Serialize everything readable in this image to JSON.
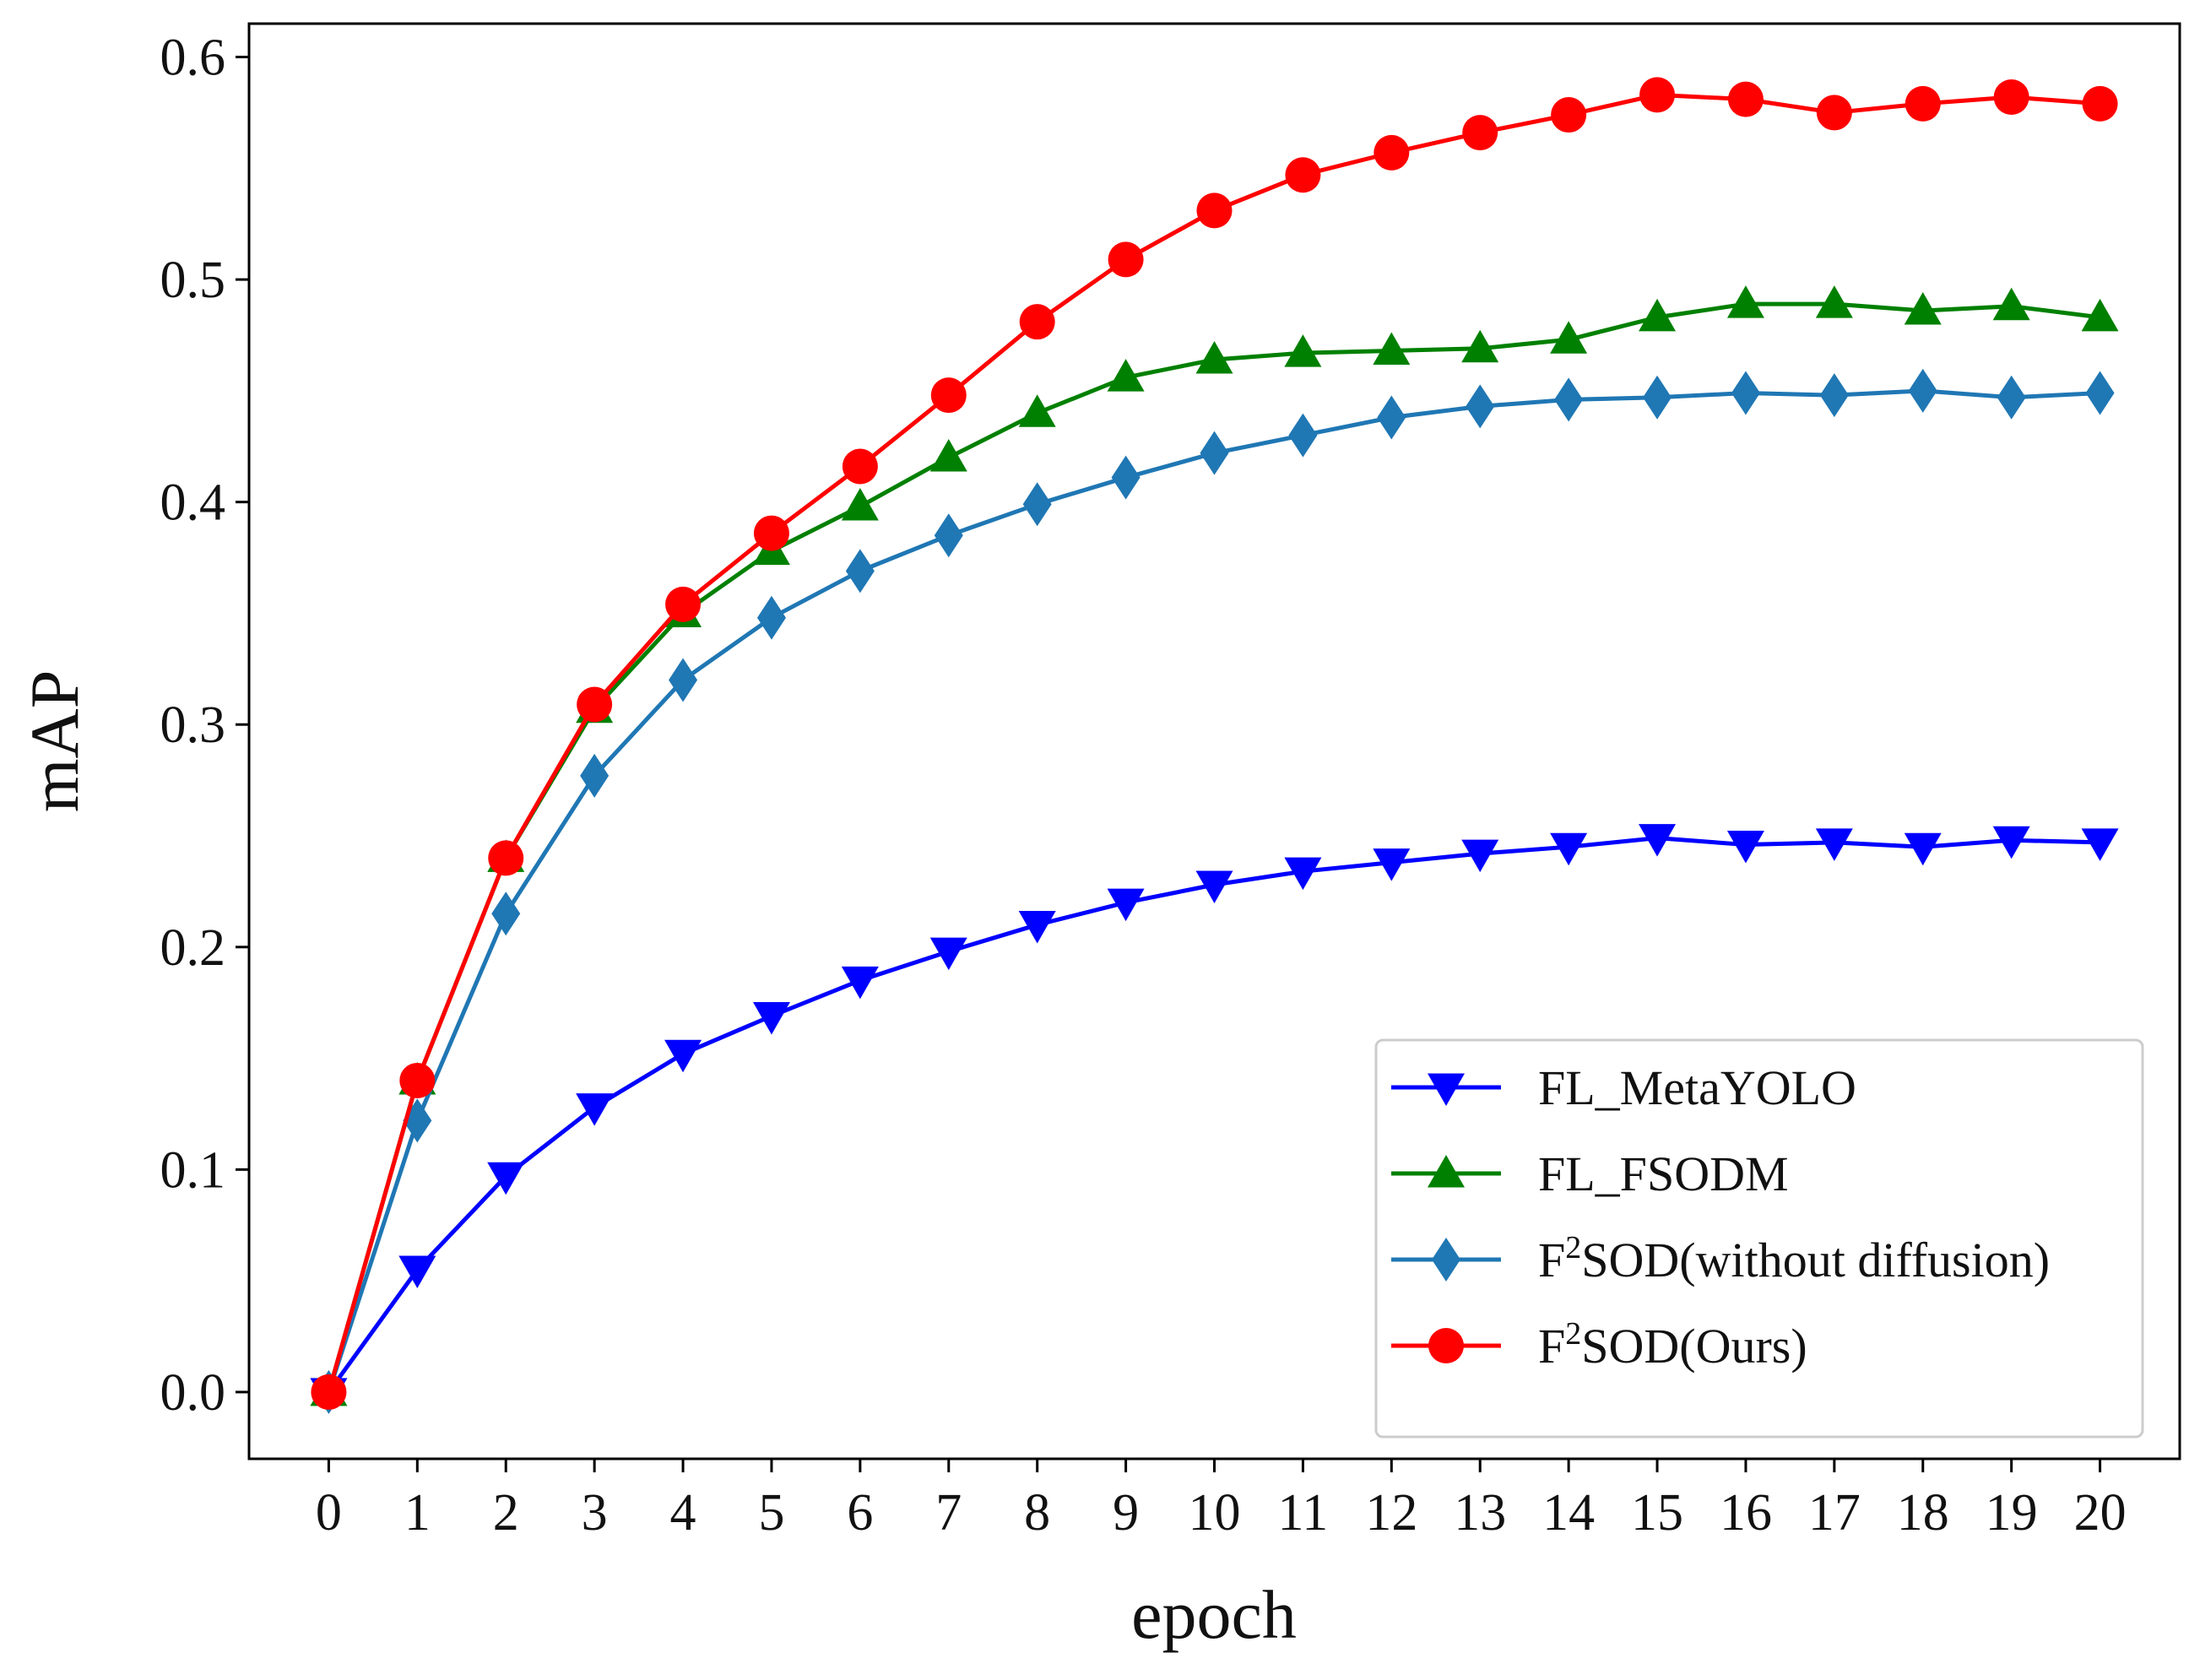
{
  "chart_data": {
    "type": "line",
    "title": "",
    "xlabel": "epoch",
    "ylabel": "mAP",
    "x": [
      0,
      1,
      2,
      3,
      4,
      5,
      6,
      7,
      8,
      9,
      10,
      11,
      12,
      13,
      14,
      15,
      16,
      17,
      18,
      19,
      20
    ],
    "x_tick_labels": [
      "0",
      "1",
      "2",
      "3",
      "4",
      "5",
      "6",
      "7",
      "8",
      "9",
      "10",
      "11",
      "12",
      "13",
      "14",
      "15",
      "16",
      "17",
      "18",
      "19",
      "20"
    ],
    "y_ticks": [
      0.0,
      0.1,
      0.2,
      0.3,
      0.4,
      0.5,
      0.6
    ],
    "y_tick_labels": [
      "0.0",
      "0.1",
      "0.2",
      "0.3",
      "0.4",
      "0.5",
      "0.6"
    ],
    "xlim": [
      -0.9,
      20.9
    ],
    "ylim": [
      -0.03,
      0.615
    ],
    "legend_position": "lower-right",
    "series": [
      {
        "name": "FL_MetaYOLO",
        "legend_base": "FL_MetaYOLO",
        "legend_sup": "",
        "legend_rest": "",
        "color": "#0000ff",
        "marker": "triangle-down",
        "values": [
          0.0,
          0.055,
          0.097,
          0.128,
          0.152,
          0.169,
          0.185,
          0.198,
          0.21,
          0.22,
          0.228,
          0.234,
          0.238,
          0.242,
          0.245,
          0.249,
          0.246,
          0.247,
          0.245,
          0.248,
          0.247
        ]
      },
      {
        "name": "FL_FSODM",
        "legend_base": "FL_FSODM",
        "legend_sup": "",
        "legend_rest": "",
        "color": "#008000",
        "marker": "triangle-up",
        "values": [
          0.0,
          0.14,
          0.24,
          0.307,
          0.35,
          0.378,
          0.398,
          0.42,
          0.44,
          0.456,
          0.464,
          0.467,
          0.468,
          0.469,
          0.473,
          0.483,
          0.489,
          0.489,
          0.486,
          0.488,
          0.483
        ]
      },
      {
        "name": "F2SOD(without diffusion)",
        "legend_base": "F",
        "legend_sup": "2",
        "legend_rest": "SOD(without diffusion)",
        "color": "#1f77b4",
        "marker": "diamond",
        "values": [
          0.0,
          0.122,
          0.215,
          0.277,
          0.32,
          0.348,
          0.369,
          0.385,
          0.399,
          0.411,
          0.422,
          0.43,
          0.438,
          0.443,
          0.446,
          0.447,
          0.449,
          0.448,
          0.45,
          0.447,
          0.449
        ]
      },
      {
        "name": "F2SOD(Ours)",
        "legend_base": "F",
        "legend_sup": "2",
        "legend_rest": "SOD(Ours)",
        "color": "#ff0000",
        "marker": "circle",
        "values": [
          0.0,
          0.14,
          0.24,
          0.309,
          0.354,
          0.386,
          0.416,
          0.448,
          0.481,
          0.509,
          0.531,
          0.547,
          0.557,
          0.566,
          0.574,
          0.583,
          0.581,
          0.575,
          0.579,
          0.582,
          0.579
        ]
      }
    ]
  }
}
